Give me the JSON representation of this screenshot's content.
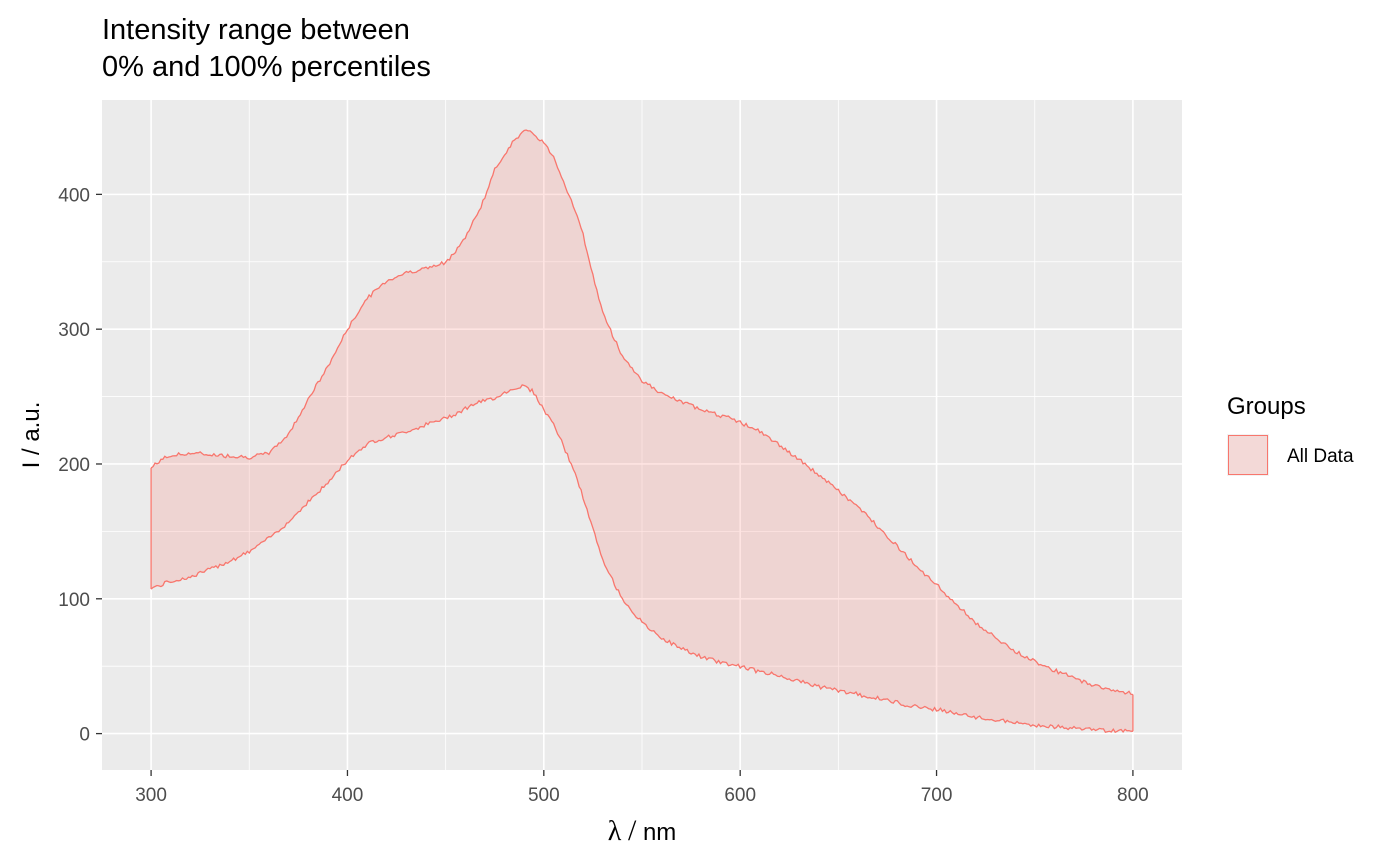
{
  "chart_data": {
    "type": "area",
    "title_lines": [
      "Intensity range between",
      "0% and 100% percentiles"
    ],
    "xlabel_symbol": "λ",
    "xlabel_unit": "nm",
    "ylabel": "I / a.u.",
    "xlim": [
      275,
      825
    ],
    "ylim": [
      -27,
      470
    ],
    "x_ticks": [
      300,
      400,
      500,
      600,
      700,
      800
    ],
    "y_ticks": [
      0,
      100,
      200,
      300,
      400
    ],
    "grid": true,
    "legend": {
      "title": "Groups",
      "position": "right",
      "entries": [
        "All Data"
      ]
    },
    "colors": {
      "fill": "#f8766d",
      "fill_opacity": 0.2,
      "line": "#f8766d",
      "panel": "#ebebeb",
      "grid": "#ffffff"
    },
    "series": [
      {
        "name": "All Data",
        "x": [
          300,
          305,
          310,
          320,
          330,
          340,
          350,
          360,
          370,
          380,
          390,
          400,
          410,
          420,
          430,
          440,
          450,
          460,
          465,
          470,
          475,
          480,
          485,
          490,
          495,
          500,
          505,
          510,
          515,
          520,
          525,
          530,
          540,
          550,
          560,
          570,
          580,
          590,
          600,
          610,
          620,
          630,
          640,
          650,
          660,
          670,
          680,
          690,
          700,
          710,
          720,
          730,
          740,
          750,
          760,
          770,
          780,
          790,
          800
        ],
        "lower": [
          108,
          110,
          113,
          116,
          122,
          128,
          135,
          145,
          157,
          172,
          186,
          203,
          215,
          220,
          224,
          229,
          234,
          241,
          245,
          247,
          249,
          253,
          256,
          258,
          253,
          240,
          230,
          213,
          197,
          175,
          152,
          128,
          100,
          82,
          71,
          63,
          57,
          53,
          50,
          46,
          43,
          39,
          35,
          32,
          29,
          26,
          23,
          20,
          18,
          15,
          12,
          10,
          8,
          6,
          5,
          4,
          3,
          2,
          2
        ],
        "upper": [
          197,
          203,
          206,
          208,
          207,
          206,
          205,
          208,
          222,
          248,
          272,
          300,
          323,
          336,
          342,
          345,
          349,
          368,
          382,
          398,
          418,
          430,
          440,
          447,
          445,
          438,
          428,
          410,
          392,
          370,
          340,
          312,
          280,
          262,
          252,
          246,
          241,
          236,
          231,
          224,
          214,
          203,
          192,
          180,
          168,
          154,
          139,
          124,
          110,
          96,
          82,
          71,
          61,
          54,
          47,
          41,
          36,
          32,
          30
        ]
      }
    ]
  }
}
